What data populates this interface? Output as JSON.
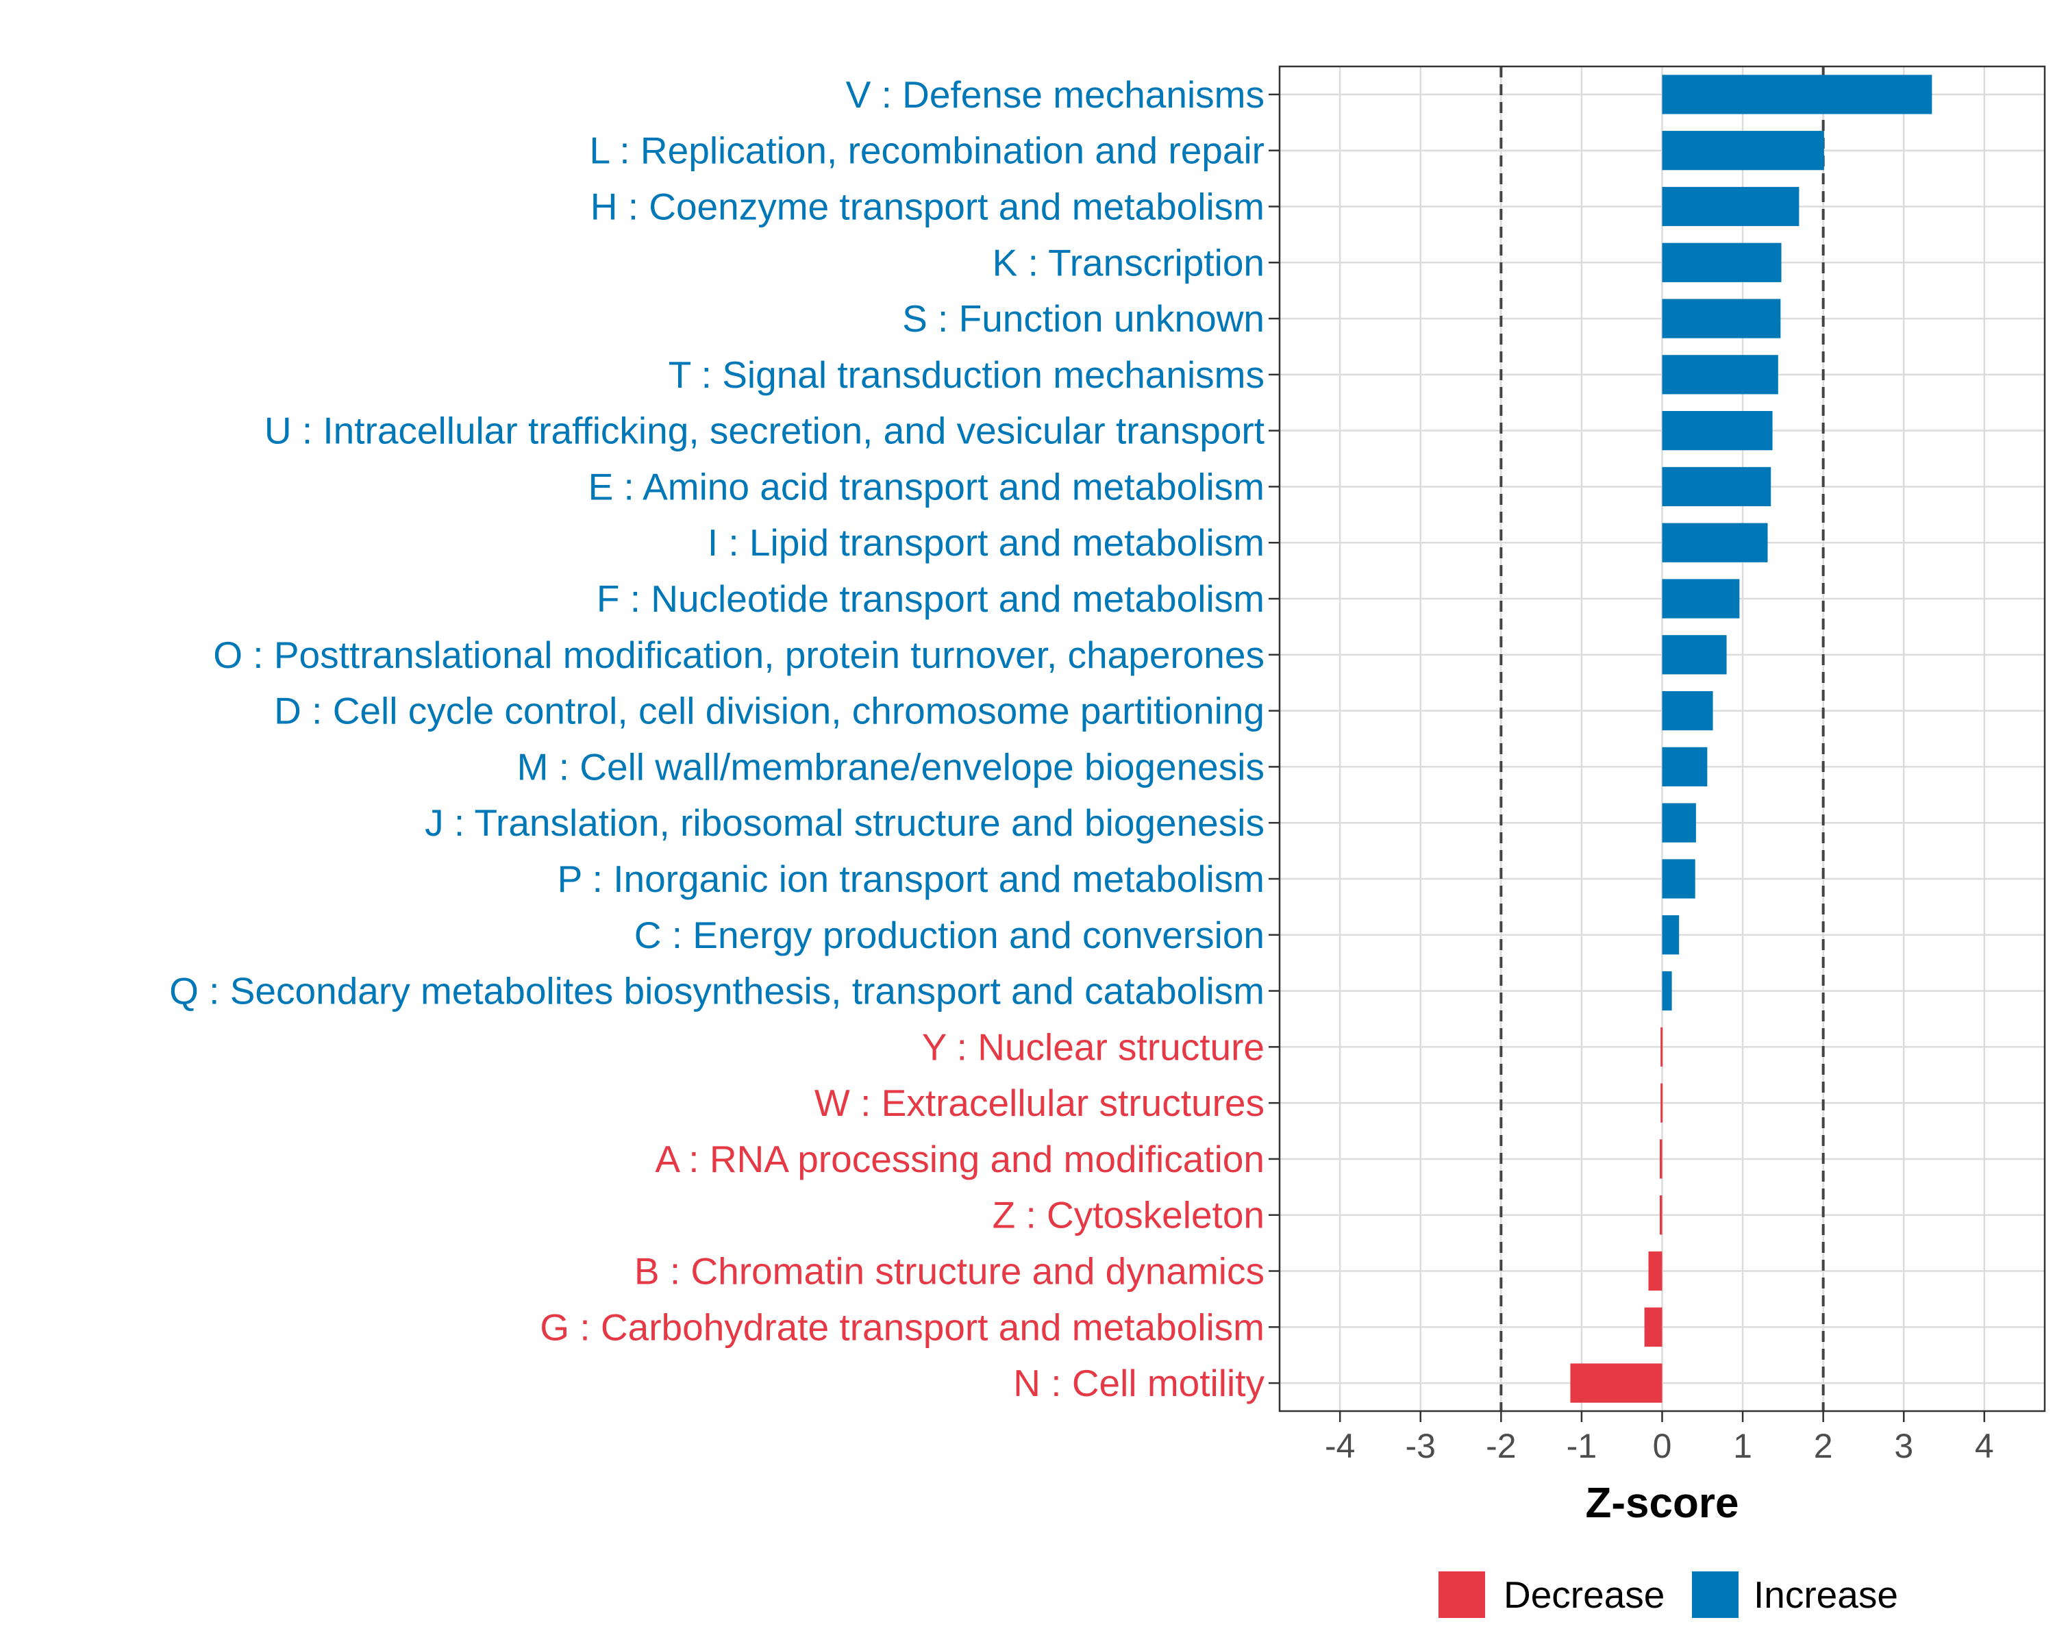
{
  "chart_data": {
    "type": "bar",
    "orientation": "horizontal",
    "xlabel": "Z-score",
    "xlim": [
      -4.75,
      4.75
    ],
    "xticks": [
      -4,
      -3,
      -2,
      -1,
      0,
      1,
      2,
      3,
      4
    ],
    "xtick_labels": [
      "-4",
      "-3",
      "-2",
      "-1",
      "0",
      "1",
      "2",
      "3",
      "4"
    ],
    "reference_lines": [
      -2,
      2
    ],
    "grid": true,
    "colors": {
      "Increase": "#0077b6",
      "Decrease": "#e63946"
    },
    "categories": [
      {
        "label": "V : Defense mechanisms",
        "value": 3.35,
        "group": "Increase"
      },
      {
        "label": "L : Replication, recombination and repair",
        "value": 2.01,
        "group": "Increase"
      },
      {
        "label": "H : Coenzyme transport and metabolism",
        "value": 1.7,
        "group": "Increase"
      },
      {
        "label": "K : Transcription",
        "value": 1.48,
        "group": "Increase"
      },
      {
        "label": "S : Function unknown",
        "value": 1.47,
        "group": "Increase"
      },
      {
        "label": "T : Signal transduction mechanisms",
        "value": 1.44,
        "group": "Increase"
      },
      {
        "label": "U : Intracellular trafficking, secretion, and vesicular transport",
        "value": 1.37,
        "group": "Increase"
      },
      {
        "label": "E : Amino acid transport and metabolism",
        "value": 1.35,
        "group": "Increase"
      },
      {
        "label": "I : Lipid transport and metabolism",
        "value": 1.31,
        "group": "Increase"
      },
      {
        "label": "F : Nucleotide transport and metabolism",
        "value": 0.96,
        "group": "Increase"
      },
      {
        "label": "O : Posttranslational modification, protein turnover, chaperones",
        "value": 0.8,
        "group": "Increase"
      },
      {
        "label": "D : Cell cycle control, cell division, chromosome partitioning",
        "value": 0.63,
        "group": "Increase"
      },
      {
        "label": "M : Cell wall/membrane/envelope biogenesis",
        "value": 0.56,
        "group": "Increase"
      },
      {
        "label": "J : Translation, ribosomal structure and biogenesis",
        "value": 0.42,
        "group": "Increase"
      },
      {
        "label": "P : Inorganic ion transport and metabolism",
        "value": 0.41,
        "group": "Increase"
      },
      {
        "label": "C : Energy production and conversion",
        "value": 0.21,
        "group": "Increase"
      },
      {
        "label": "Q : Secondary metabolites biosynthesis, transport and catabolism",
        "value": 0.12,
        "group": "Increase"
      },
      {
        "label": "Y : Nuclear structure",
        "value": -0.02,
        "group": "Decrease"
      },
      {
        "label": "W : Extracellular structures",
        "value": -0.02,
        "group": "Decrease"
      },
      {
        "label": "A : RNA processing and modification",
        "value": -0.03,
        "group": "Decrease"
      },
      {
        "label": "Z : Cytoskeleton",
        "value": -0.03,
        "group": "Decrease"
      },
      {
        "label": "B : Chromatin structure and dynamics",
        "value": -0.17,
        "group": "Decrease"
      },
      {
        "label": "G : Carbohydrate transport and metabolism",
        "value": -0.22,
        "group": "Decrease"
      },
      {
        "label": "N : Cell motility",
        "value": -1.14,
        "group": "Decrease"
      }
    ],
    "legend": {
      "position": "bottom",
      "entries": [
        {
          "label": "Decrease",
          "color": "#e63946"
        },
        {
          "label": "Increase",
          "color": "#0077b6"
        }
      ]
    }
  }
}
